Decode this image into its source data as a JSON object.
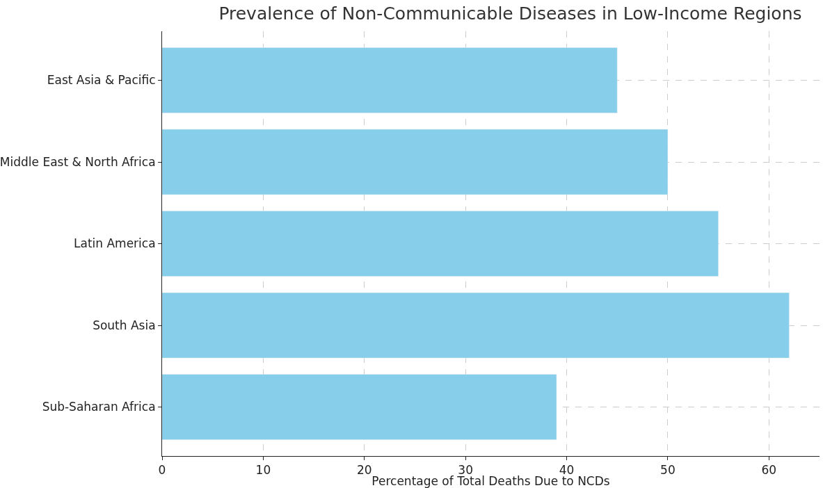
{
  "chart_data": {
    "type": "bar",
    "orientation": "horizontal",
    "title": "Prevalence of Non-Communicable Diseases in Low-Income Regions",
    "xlabel": "Percentage of Total Deaths Due to NCDs",
    "categories": [
      "East Asia & Pacific",
      "Middle East & North Africa",
      "Latin America",
      "South Asia",
      "Sub-Saharan Africa"
    ],
    "values": [
      45,
      50,
      55,
      62,
      39
    ],
    "color": "#87ceeb",
    "xlim": [
      0,
      65
    ],
    "xticks": [
      0,
      10,
      20,
      30,
      40,
      50,
      60
    ],
    "grid": true
  }
}
